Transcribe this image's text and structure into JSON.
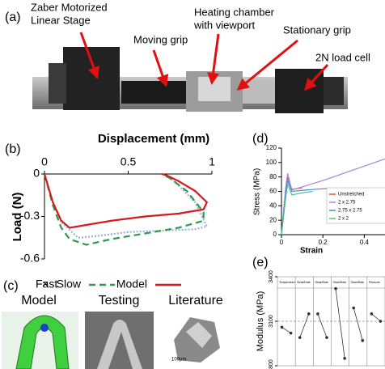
{
  "panel_a": {
    "label": "(a)",
    "callouts": [
      {
        "lines": [
          "Zaber Motorized",
          "Linear Stage"
        ]
      },
      {
        "lines": [
          "Moving grip"
        ]
      },
      {
        "lines": [
          "Heating chamber",
          "with viewport"
        ]
      },
      {
        "lines": [
          "Stationary grip"
        ]
      },
      {
        "lines": [
          "2N load cell"
        ]
      }
    ]
  },
  "panel_c": {
    "label": "(c)",
    "images": [
      "Model",
      "Testing",
      "Literature"
    ],
    "scale_bar": "100μm"
  },
  "chart_data": [
    {
      "type": "line",
      "panel": "(b)",
      "x_label": "Displacement (mm)",
      "y_label": "Load (N)",
      "xlim": [
        0,
        1
      ],
      "ylim": [
        -0.6,
        0
      ],
      "xticks": [
        0,
        0.5,
        1
      ],
      "yticks": [
        0,
        -0.3,
        -0.6
      ],
      "series": [
        {
          "name": "Fast",
          "color": "#9ab3d9",
          "style": "dotted",
          "x": [
            0,
            0.05,
            0.1,
            0.2,
            0.3,
            0.5,
            0.7,
            0.9,
            0.97,
            0.9,
            0.8,
            0.72
          ],
          "y": [
            0,
            -0.2,
            -0.34,
            -0.45,
            -0.44,
            -0.41,
            -0.4,
            -0.39,
            -0.37,
            -0.2,
            -0.08,
            0
          ]
        },
        {
          "name": "Slow",
          "color": "#2e9a4f",
          "style": "dashed",
          "x": [
            0,
            0.05,
            0.1,
            0.15,
            0.25,
            0.4,
            0.6,
            0.8,
            0.95,
            0.95,
            0.85,
            0.75,
            0.7
          ],
          "y": [
            0,
            -0.22,
            -0.38,
            -0.46,
            -0.5,
            -0.46,
            -0.42,
            -0.38,
            -0.33,
            -0.27,
            -0.12,
            -0.03,
            0
          ]
        },
        {
          "name": "Model",
          "color": "#d7191c",
          "style": "solid",
          "x": [
            0,
            0.05,
            0.1,
            0.15,
            0.25,
            0.4,
            0.6,
            0.8,
            0.95,
            0.97,
            0.9,
            0.8,
            0.73,
            0.7
          ],
          "y": [
            0,
            -0.2,
            -0.33,
            -0.38,
            -0.36,
            -0.33,
            -0.3,
            -0.28,
            -0.25,
            -0.2,
            -0.12,
            -0.05,
            -0.01,
            0
          ]
        }
      ]
    },
    {
      "type": "line",
      "panel": "(d)",
      "x_label": "Strain",
      "y_label": "Stress (MPa)",
      "xlim": [
        0,
        0.5
      ],
      "ylim": [
        0,
        120
      ],
      "xticks": [
        0,
        0.2,
        0.4
      ],
      "yticks": [
        0,
        20,
        40,
        60,
        80,
        100,
        120
      ],
      "series": [
        {
          "name": "Unstretched",
          "color": "#e0524f",
          "style": "solid",
          "x": [
            0,
            0.02,
            0.03,
            0.05,
            0.08,
            0.1
          ],
          "y": [
            0,
            60,
            80,
            63,
            64,
            65
          ]
        },
        {
          "name": "2 x 2.75",
          "color": "#a98bd6",
          "style": "solid",
          "x": [
            0,
            0.02,
            0.03,
            0.05,
            0.2,
            0.35,
            0.5
          ],
          "y": [
            0,
            65,
            85,
            62,
            75,
            90,
            105
          ]
        },
        {
          "name": "2.75 x 2.75",
          "color": "#3f8fcf",
          "style": "solid",
          "x": [
            0,
            0.02,
            0.03,
            0.05,
            0.12,
            0.22
          ],
          "y": [
            0,
            55,
            75,
            60,
            62,
            64
          ]
        },
        {
          "name": "2 x 2",
          "color": "#4fbf8f",
          "style": "solid",
          "x": [
            0,
            0.02,
            0.03,
            0.05,
            0.1,
            0.15
          ],
          "y": [
            0,
            50,
            70,
            55,
            58,
            60
          ]
        }
      ]
    },
    {
      "type": "main-effects",
      "panel": "(e)",
      "y_label": "Modulus (MPa)",
      "ylim": [
        2800,
        3400
      ],
      "yticks": [
        2800,
        3100,
        3400
      ],
      "mean": 3100,
      "color": "#333333",
      "factors": [
        {
          "name": "Temperature",
          "values": [
            3060,
            3020
          ]
        },
        {
          "name": "StrainRate",
          "values": [
            2990,
            3150
          ]
        },
        {
          "name": "StrainRate",
          "values": [
            3150,
            2990
          ]
        },
        {
          "name": "StrainRate",
          "values": [
            3320,
            2850
          ]
        },
        {
          "name": "StrainRate",
          "values": [
            3190,
            2970
          ]
        },
        {
          "name": "Pressure",
          "values": [
            3150,
            3100
          ]
        }
      ]
    }
  ]
}
